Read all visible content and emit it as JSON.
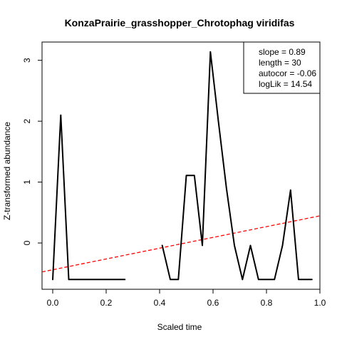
{
  "chart_data": {
    "type": "line",
    "title": "KonzaPrairie_grasshopper_Chrotophag viridifas",
    "xlabel": "Scaled time",
    "ylabel": "Z-transformed abundance",
    "xlim": [
      -0.04,
      1.0
    ],
    "ylim": [
      -0.76,
      3.3
    ],
    "xticks": [
      0.0,
      0.2,
      0.4,
      0.6,
      0.8,
      1.0
    ],
    "xtick_labels": [
      "0.0",
      "0.2",
      "0.4",
      "0.6",
      "0.8",
      "1.0"
    ],
    "yticks": [
      0,
      1,
      2,
      3
    ],
    "ytick_labels": [
      "0",
      "1",
      "2",
      "3"
    ],
    "grid": false,
    "series": [
      {
        "color": "#000000",
        "style": "solid",
        "segments": [
          [
            {
              "x": 0.0,
              "y": -0.6
            },
            {
              "x": 0.03,
              "y": 2.1
            },
            {
              "x": 0.06,
              "y": -0.6
            },
            {
              "x": 0.27,
              "y": -0.6
            }
          ],
          [
            {
              "x": 0.41,
              "y": -0.04
            },
            {
              "x": 0.44,
              "y": -0.6
            },
            {
              "x": 0.47,
              "y": -0.6
            },
            {
              "x": 0.5,
              "y": 1.11
            },
            {
              "x": 0.53,
              "y": 1.11
            },
            {
              "x": 0.56,
              "y": -0.04
            },
            {
              "x": 0.59,
              "y": 3.14
            },
            {
              "x": 0.62,
              "y": 2.0
            },
            {
              "x": 0.65,
              "y": 0.9
            },
            {
              "x": 0.68,
              "y": -0.04
            },
            {
              "x": 0.71,
              "y": -0.6
            },
            {
              "x": 0.74,
              "y": -0.04
            },
            {
              "x": 0.77,
              "y": -0.6
            },
            {
              "x": 0.8,
              "y": -0.6
            },
            {
              "x": 0.83,
              "y": -0.6
            },
            {
              "x": 0.86,
              "y": -0.04
            },
            {
              "x": 0.89,
              "y": 0.87
            },
            {
              "x": 0.92,
              "y": -0.6
            },
            {
              "x": 0.97,
              "y": -0.6
            }
          ]
        ]
      }
    ],
    "trend_line": {
      "color": "#ff0000",
      "style": "dashed",
      "x": [
        -0.04,
        1.0
      ],
      "y": [
        -0.475,
        0.446
      ]
    },
    "legend": {
      "placement": "top-right",
      "entries": [
        "slope = 0.89",
        "length = 30",
        "autocor = -0.06",
        "logLik = 14.54"
      ]
    }
  }
}
